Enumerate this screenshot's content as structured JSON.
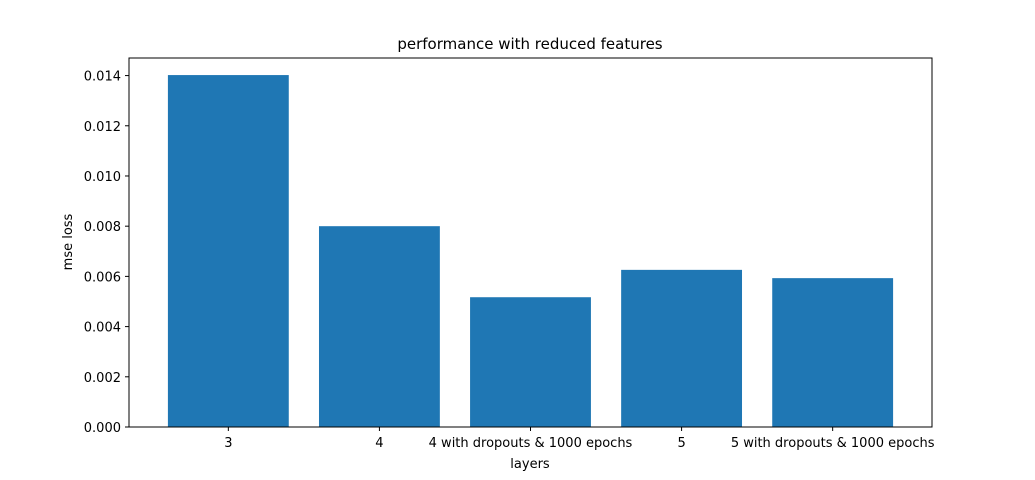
{
  "chart_data": {
    "type": "bar",
    "title": "performance with reduced features",
    "xlabel": "layers",
    "ylabel": "mse loss",
    "categories": [
      "3",
      "4",
      "4 with dropouts & 1000 epochs",
      "5",
      "5 with dropouts & 1000 epochs"
    ],
    "values": [
      0.01402,
      0.008,
      0.00517,
      0.00626,
      0.00593
    ],
    "ylim": [
      0,
      0.0147
    ],
    "yticks": [
      "0.000",
      "0.002",
      "0.004",
      "0.006",
      "0.008",
      "0.010",
      "0.012",
      "0.014"
    ],
    "grid": false,
    "bar_color": "#1f77b4"
  }
}
